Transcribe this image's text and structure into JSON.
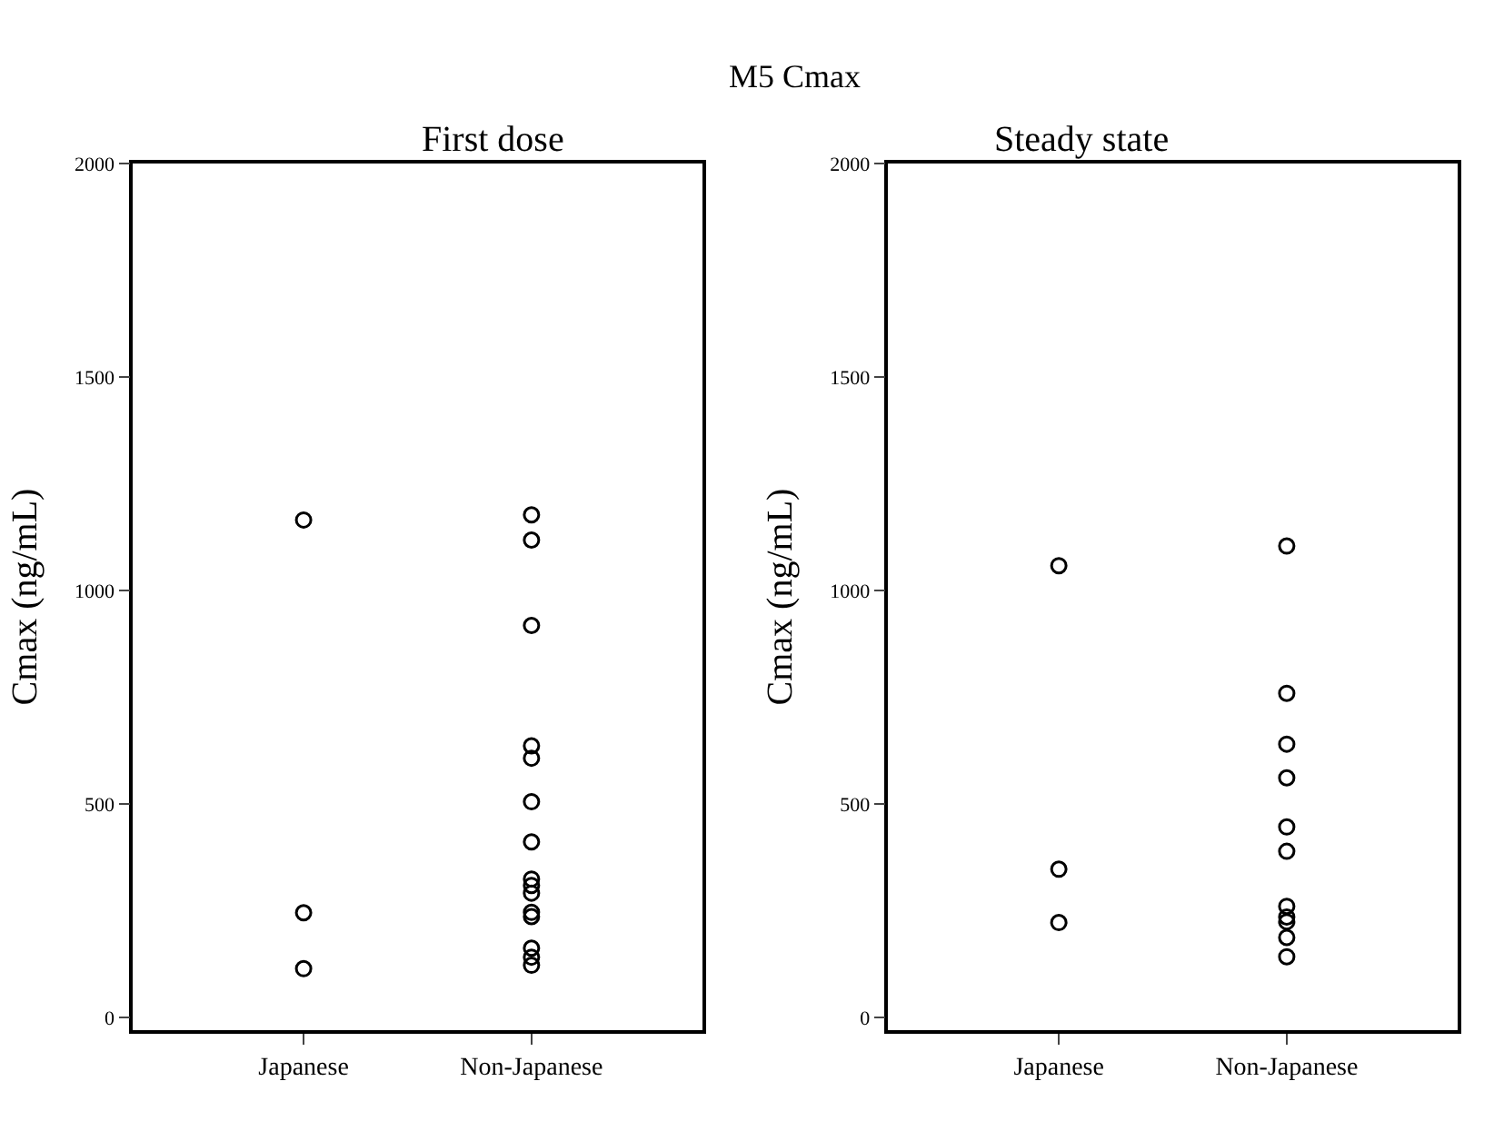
{
  "chart_data": [
    {
      "type": "scatter",
      "title": "First dose",
      "annotations": [
        "M5 Cmax"
      ],
      "ylabel": "Cmax (ng/mL)",
      "categories": [
        "Japanese",
        "Non-Japanese"
      ],
      "ylim": [
        -30,
        2000
      ],
      "yticks": [
        0,
        500,
        1000,
        1500,
        2000
      ],
      "marker": "circle",
      "series": [
        {
          "color": "#000000",
          "x": [
            "Japanese",
            "Japanese",
            "Japanese"
          ],
          "values": [
            1165,
            245,
            114
          ]
        },
        {
          "color": "#000000",
          "x": [
            "Non-Japanese",
            "Non-Japanese",
            "Non-Japanese",
            "Non-Japanese",
            "Non-Japanese",
            "Non-Japanese",
            "Non-Japanese",
            "Non-Japanese",
            "Non-Japanese",
            "Non-Japanese",
            "Non-Japanese",
            "Non-Japanese",
            "Non-Japanese",
            "Non-Japanese",
            "Non-Japanese"
          ],
          "values": [
            1177,
            1118,
            918,
            636,
            607,
            505,
            411,
            324,
            309,
            291,
            246,
            236,
            162,
            141,
            122
          ]
        }
      ]
    },
    {
      "type": "scatter",
      "title": "Steady state",
      "ylabel": "Cmax (ng/mL)",
      "categories": [
        "Japanese",
        "Non-Japanese"
      ],
      "ylim": [
        -30,
        2000
      ],
      "yticks": [
        0,
        500,
        1000,
        1500,
        2000
      ],
      "marker": "circle",
      "series": [
        {
          "color": "#000000",
          "x": [
            "Japanese",
            "Japanese",
            "Japanese"
          ],
          "values": [
            1058,
            347,
            222
          ]
        },
        {
          "color": "#000000",
          "x": [
            "Non-Japanese",
            "Non-Japanese",
            "Non-Japanese",
            "Non-Japanese",
            "Non-Japanese",
            "Non-Japanese",
            "Non-Japanese",
            "Non-Japanese",
            "Non-Japanese",
            "Non-Japanese",
            "Non-Japanese"
          ],
          "values": [
            1104,
            759,
            640,
            561,
            446,
            389,
            260,
            235,
            224,
            187,
            142
          ]
        }
      ]
    }
  ]
}
